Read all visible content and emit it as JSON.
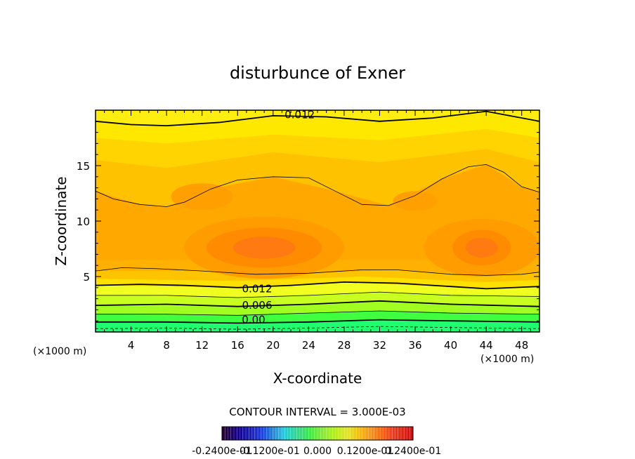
{
  "chart_data": {
    "type": "heatmap",
    "title": "disturbunce of Exner",
    "xlabel": "X-coordinate",
    "ylabel": "Z-coordinate",
    "x_unit_left": "(×1000 m)",
    "x_unit_right": "(×1000 m)",
    "xlim": [
      0,
      50
    ],
    "ylim": [
      0,
      20
    ],
    "x_ticks": [
      4,
      8,
      12,
      16,
      20,
      24,
      28,
      32,
      36,
      40,
      44,
      48
    ],
    "y_ticks": [
      5,
      10,
      15
    ],
    "contour_labels": [
      {
        "text": "0.012",
        "x": 23,
        "y": 19.6
      },
      {
        "text": "0.012",
        "x": 18.2,
        "y": 3.9
      },
      {
        "text": "0.006",
        "x": 18.2,
        "y": 2.4
      },
      {
        "text": "0.00",
        "x": 17.8,
        "y": 1.1
      }
    ],
    "contour_lines": [
      {
        "level": 0.012,
        "style": "bold",
        "points": [
          [
            0,
            19.0
          ],
          [
            4,
            18.7
          ],
          [
            8,
            18.6
          ],
          [
            14,
            18.9
          ],
          [
            20,
            19.5
          ],
          [
            26,
            19.4
          ],
          [
            32,
            19.0
          ],
          [
            38,
            19.3
          ],
          [
            44,
            19.9
          ],
          [
            50,
            19.0
          ]
        ]
      },
      {
        "level": 0.015,
        "style": "thin",
        "points": [
          [
            0,
            12.7
          ],
          [
            2,
            12.0
          ],
          [
            5,
            11.5
          ],
          [
            8,
            11.3
          ],
          [
            10,
            11.7
          ],
          [
            13,
            12.9
          ],
          [
            16,
            13.7
          ],
          [
            20,
            14.0
          ],
          [
            24,
            13.9
          ],
          [
            27,
            12.7
          ],
          [
            30,
            11.5
          ],
          [
            33,
            11.4
          ],
          [
            36,
            12.3
          ],
          [
            39,
            13.8
          ],
          [
            42,
            14.9
          ],
          [
            44,
            15.1
          ],
          [
            46,
            14.4
          ],
          [
            48,
            13.1
          ],
          [
            50,
            12.6
          ]
        ]
      },
      {
        "level": 0.015,
        "style": "thin",
        "points": [
          [
            0,
            5.5
          ],
          [
            3,
            5.8
          ],
          [
            7,
            5.7
          ],
          [
            12,
            5.5
          ],
          [
            18,
            5.2
          ],
          [
            24,
            5.3
          ],
          [
            30,
            5.6
          ],
          [
            34,
            5.6
          ],
          [
            40,
            5.2
          ],
          [
            44,
            5.1
          ],
          [
            48,
            5.2
          ],
          [
            50,
            5.4
          ]
        ]
      },
      {
        "level": 0.012,
        "style": "bold",
        "points": [
          [
            0,
            4.2
          ],
          [
            5,
            4.3
          ],
          [
            10,
            4.2
          ],
          [
            16,
            4.0
          ],
          [
            22,
            4.2
          ],
          [
            28,
            4.5
          ],
          [
            34,
            4.4
          ],
          [
            40,
            4.1
          ],
          [
            44,
            3.9
          ],
          [
            50,
            4.1
          ]
        ]
      },
      {
        "level": 0.009,
        "style": "thin",
        "points": [
          [
            0,
            3.3
          ],
          [
            8,
            3.3
          ],
          [
            16,
            3.1
          ],
          [
            24,
            3.3
          ],
          [
            32,
            3.6
          ],
          [
            40,
            3.3
          ],
          [
            50,
            3.2
          ]
        ]
      },
      {
        "level": 0.006,
        "style": "bold",
        "points": [
          [
            0,
            2.4
          ],
          [
            8,
            2.5
          ],
          [
            16,
            2.3
          ],
          [
            24,
            2.5
          ],
          [
            32,
            2.8
          ],
          [
            40,
            2.5
          ],
          [
            50,
            2.3
          ]
        ]
      },
      {
        "level": 0.003,
        "style": "thin",
        "points": [
          [
            0,
            1.6
          ],
          [
            8,
            1.6
          ],
          [
            16,
            1.5
          ],
          [
            24,
            1.7
          ],
          [
            32,
            1.9
          ],
          [
            40,
            1.7
          ],
          [
            50,
            1.6
          ]
        ]
      },
      {
        "level": 0.0,
        "style": "bold",
        "points": [
          [
            0,
            0.9
          ],
          [
            8,
            0.9
          ],
          [
            16,
            0.8
          ],
          [
            24,
            0.9
          ],
          [
            32,
            1.1
          ],
          [
            40,
            1.0
          ],
          [
            50,
            0.9
          ]
        ]
      },
      {
        "level": -0.003,
        "style": "dashed",
        "points": [
          [
            0,
            0.3
          ],
          [
            8,
            0.35
          ],
          [
            16,
            0.25
          ],
          [
            24,
            0.35
          ],
          [
            32,
            0.5
          ],
          [
            40,
            0.4
          ],
          [
            50,
            0.3
          ]
        ]
      }
    ],
    "contour_interval_text": "CONTOUR INTERVAL = 3.000E-03",
    "colorbar_labels": [
      "-0.2400e-01",
      "-0.1200e-01",
      "0.000",
      "0.1200e-01",
      "0.2400e-01"
    ],
    "colors": {
      "top_band": "#ffe800",
      "mid_band": "#ffa800",
      "max_band": "#ff7a10",
      "yellow": "#f0ff20",
      "green_light": "#a0ff20",
      "green": "#40ff40",
      "green_deep": "#20ff70"
    }
  }
}
